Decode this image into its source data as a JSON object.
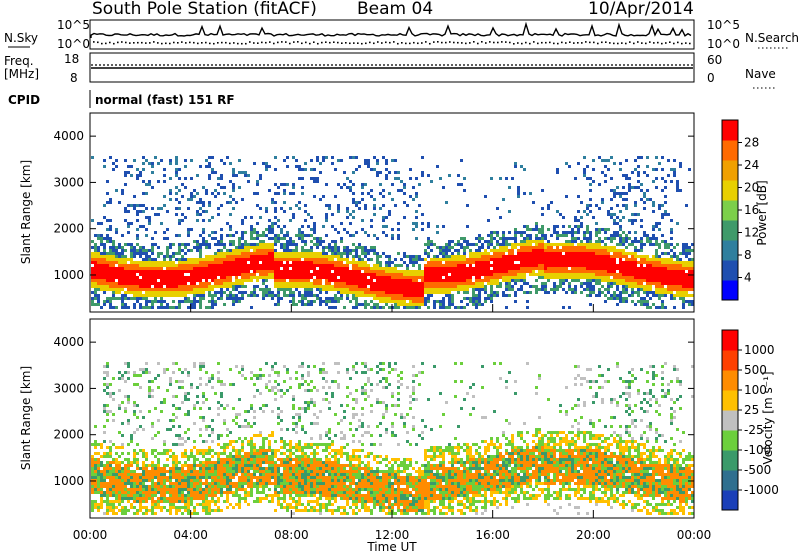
{
  "header": {
    "station": "South Pole Station (fitACF)",
    "beam": "Beam 04",
    "date": "10/Apr/2014",
    "cpid_label": "CPID",
    "cpid_value": "normal (fast) 151 RF"
  },
  "top_panels": {
    "nsky_label": "N.Sky",
    "nsearch_label": "N.Search",
    "freq_label_1": "Freq.",
    "freq_label_2": "[MHz]",
    "nave_label": "Nave",
    "noise_ticks_left": [
      "10^5",
      "10^0"
    ],
    "noise_ticks_right": [
      "10^5",
      "10^0"
    ],
    "freq_ticks": [
      "18",
      "8"
    ],
    "nave_ticks": [
      "60",
      "0"
    ]
  },
  "chart_data": [
    {
      "type": "heatmap",
      "name": "power",
      "ylabel": "Slant Range [km]",
      "ylim": [
        200,
        4500
      ],
      "yticks": [
        "4000",
        "3000",
        "2000",
        "1000"
      ],
      "colorbar_label": "Power [dB]",
      "colorbar_ticks": [
        "28",
        "24",
        "20",
        "16",
        "12",
        "8",
        "4"
      ],
      "colors": [
        "#0000ff",
        "#1f4fb0",
        "#2f7f9e",
        "#3f9a6a",
        "#7ccf4a",
        "#e8d000",
        "#f0a000",
        "#ff6a00",
        "#ff0000"
      ]
    },
    {
      "type": "heatmap",
      "name": "velocity",
      "ylabel": "Slant Range [km]",
      "ylim": [
        200,
        4500
      ],
      "yticks": [
        "4000",
        "3000",
        "2000",
        "1000"
      ],
      "colorbar_label": "Velocity [m s⁻¹]",
      "colorbar_ticks": [
        "1000",
        "500",
        "100",
        "25",
        "-25",
        "-100",
        "-500",
        "-1000"
      ],
      "colors": [
        "#1a3fb8",
        "#2f6f8f",
        "#3a9a6a",
        "#6ccf3c",
        "#c0c0c0",
        "#ffc000",
        "#ff8c00",
        "#ff4000",
        "#ff0000"
      ]
    }
  ],
  "xaxis": {
    "label": "Time UT",
    "ticks": [
      "00:00",
      "04:00",
      "08:00",
      "12:00",
      "16:00",
      "20:00",
      "00:00"
    ]
  }
}
